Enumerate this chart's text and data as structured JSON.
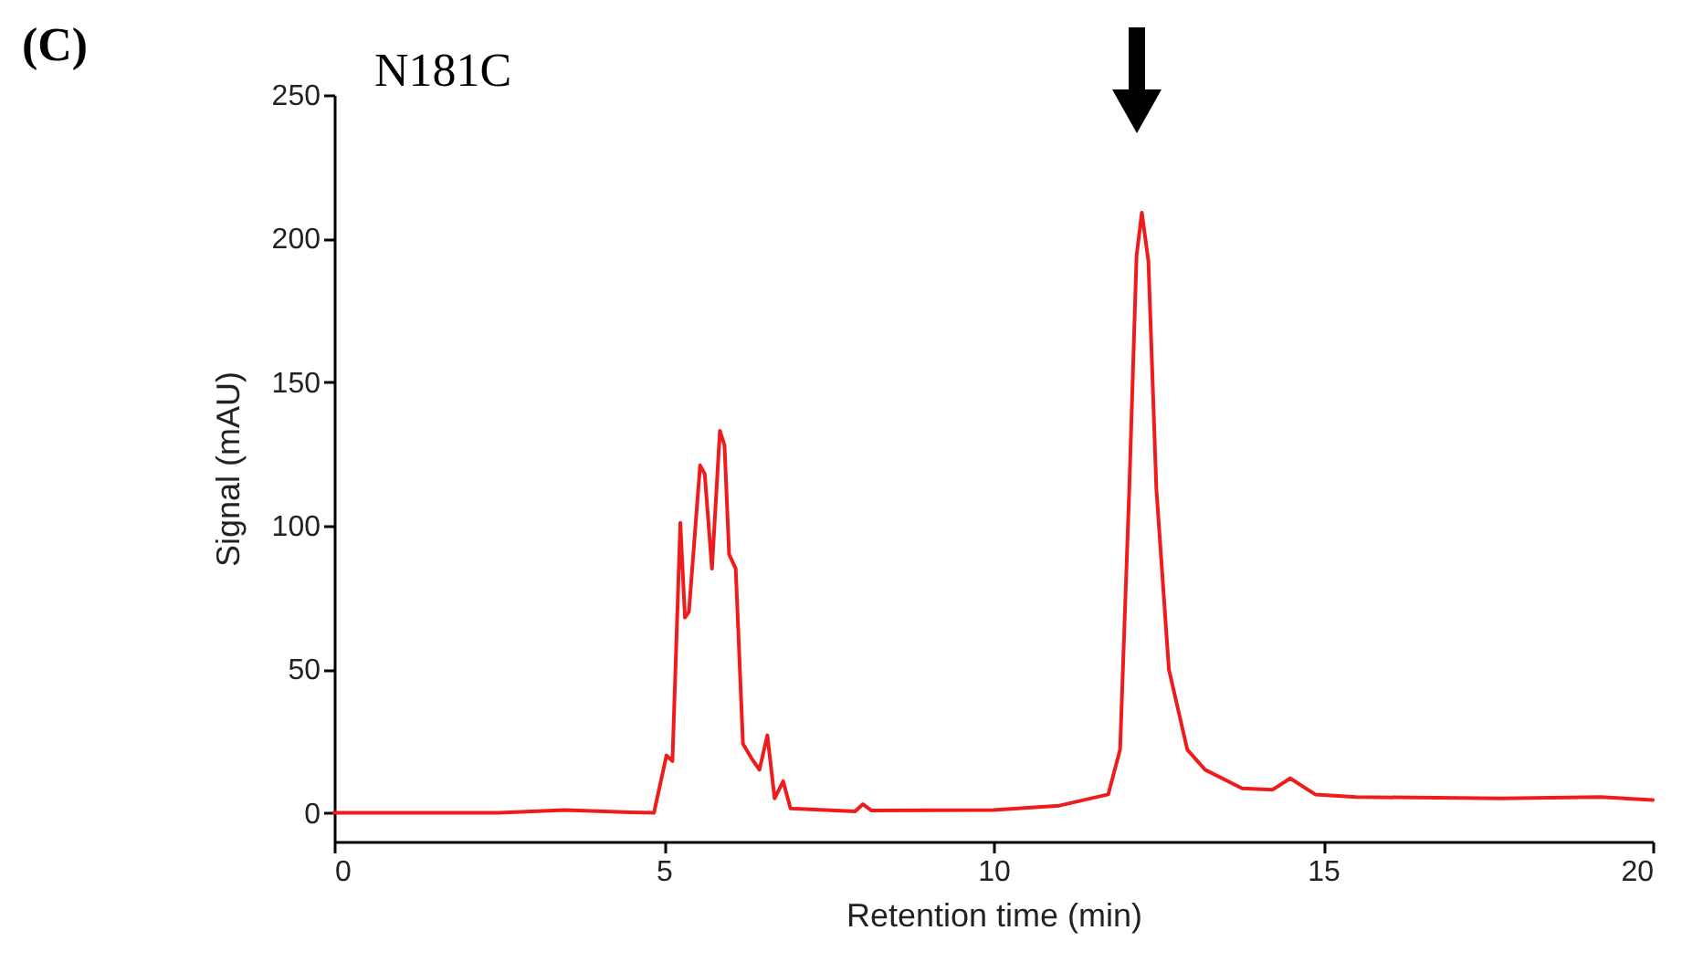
{
  "chart_data": {
    "type": "line",
    "title": "N181C",
    "xlabel": "Retention time (min)",
    "ylabel": "Signal (mAU)",
    "annotations": [
      "(C)"
    ],
    "x": [
      0,
      2.5,
      3.5,
      4.5,
      4.85,
      5.04,
      5.13,
      5.25,
      5.32,
      5.38,
      5.55,
      5.62,
      5.73,
      5.85,
      5.92,
      5.99,
      6.09,
      6.2,
      6.33,
      6.45,
      6.57,
      6.68,
      6.81,
      6.92,
      7.9,
      8.02,
      8.15,
      10,
      11,
      11.74,
      11.92,
      12.06,
      12.17,
      12.25,
      12.35,
      12.47,
      12.66,
      12.94,
      13.21,
      13.77,
      14.23,
      14.5,
      14.88,
      15.5,
      17.7,
      19.2,
      20
    ],
    "series": [
      {
        "color": "#ee1c1c",
        "values": [
          0,
          0,
          1,
          0.2,
          0,
          20,
          18,
          101,
          68,
          70,
          121,
          118,
          85,
          133,
          128,
          90,
          85,
          24,
          19,
          15,
          27,
          5,
          11,
          1.5,
          0.5,
          3,
          0.8,
          1,
          2.5,
          6.4,
          22,
          113,
          194,
          209,
          192,
          113,
          50,
          22,
          15,
          8.5,
          8,
          12,
          6.4,
          5.5,
          5,
          5.5,
          4.5
        ]
      }
    ],
    "xlim": [
      0,
      20
    ],
    "xticks": [
      0,
      5,
      10,
      15,
      20
    ],
    "ylim": [
      -10,
      250
    ],
    "yticks": [
      0,
      50,
      100,
      150,
      200,
      250
    ],
    "grid": false,
    "marker": "none",
    "line_style": "solid"
  }
}
